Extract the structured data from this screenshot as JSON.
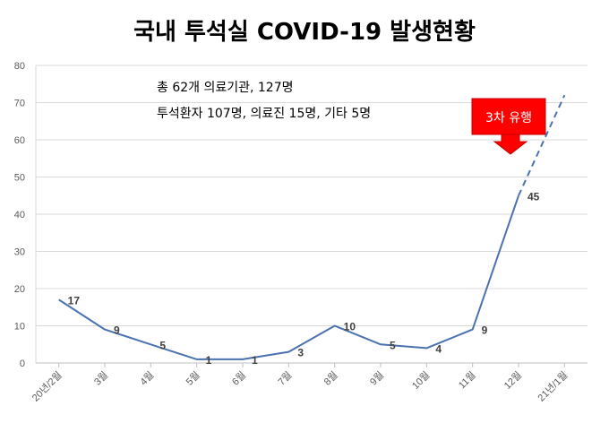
{
  "chart_data": {
    "type": "line",
    "title": "국내 투석실 COVID-19 발생현황",
    "categories": [
      "20년/2월",
      "3월",
      "4월",
      "5월",
      "6월",
      "7월",
      "8월",
      "9월",
      "10월",
      "11월",
      "12월",
      "21년/1월"
    ],
    "series": [
      {
        "values": [
          17,
          9,
          5,
          1,
          1,
          3,
          10,
          5,
          4,
          9,
          45,
          null
        ]
      }
    ],
    "projection": {
      "from_category": "12월",
      "to_category": "21년/1월",
      "from_value": 45,
      "to_value": 72,
      "style": "dashed"
    },
    "ylim": [
      0,
      80
    ],
    "yticks": [
      0,
      10,
      20,
      30,
      40,
      50,
      60,
      70,
      80
    ],
    "grid": true,
    "line_color": "#4a72b0",
    "annotations": [
      "총 62개 의료기관, 127명",
      "투석환자 107명, 의료진 15명, 기타 5명"
    ],
    "callout": {
      "text": "3차 유행",
      "color": "#ff0000"
    }
  }
}
